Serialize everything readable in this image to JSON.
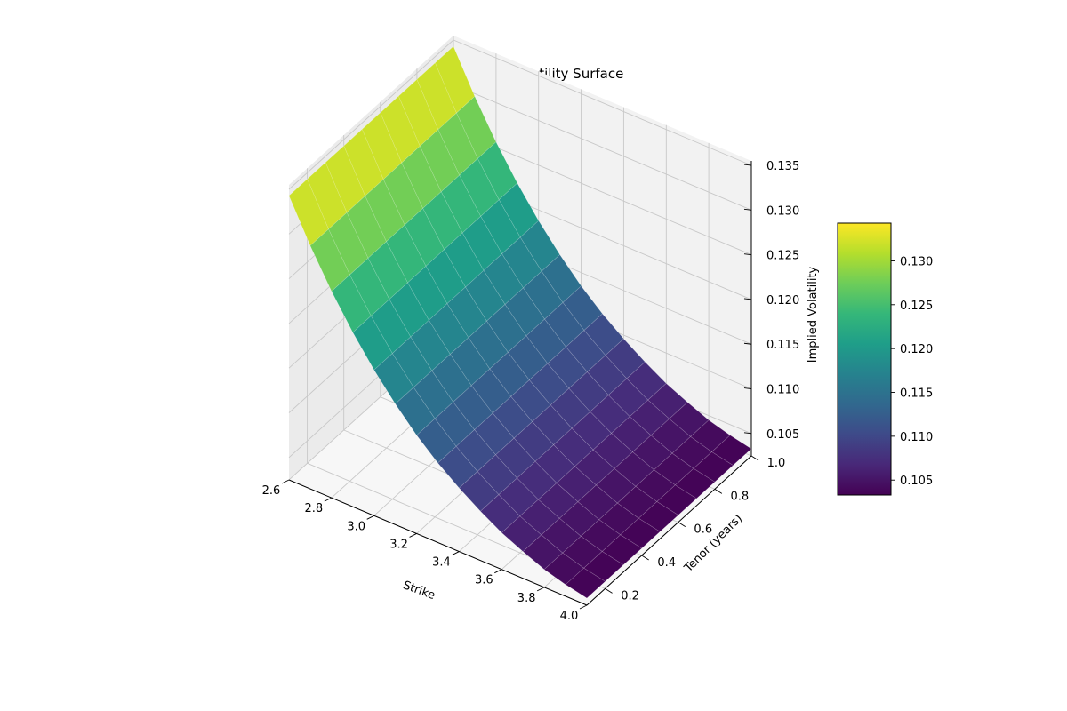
{
  "chart_data": {
    "type": "surface3d",
    "title": "SABR Implied Volatility Surface",
    "xlabel": "Strike",
    "ylabel": "Tenor (years)",
    "zlabel": "Implied Volatility",
    "xlim": [
      2.6,
      4.0
    ],
    "ylim": [
      0.1,
      1.0
    ],
    "zlim": [
      0.1025,
      0.1355
    ],
    "x_ticks": [
      "2.6",
      "2.8",
      "3.0",
      "3.2",
      "3.4",
      "3.6",
      "3.8",
      "4.0"
    ],
    "y_ticks": [
      "0.2",
      "0.4",
      "0.6",
      "0.8",
      "1.0"
    ],
    "z_ticks": [
      "0.105",
      "0.110",
      "0.115",
      "0.120",
      "0.125",
      "0.130",
      "0.135"
    ],
    "colorbar": {
      "colormap": "viridis",
      "range": [
        0.1033,
        0.1343
      ],
      "ticks": [
        "0.105",
        "0.110",
        "0.115",
        "0.120",
        "0.125",
        "0.130"
      ]
    },
    "grid": true,
    "surface_x": [
      2.6,
      2.7,
      2.8,
      2.9,
      3.0,
      3.1,
      3.2,
      3.3,
      3.4,
      3.5,
      3.6,
      3.7,
      3.8,
      3.9,
      4.0
    ],
    "surface_y": [
      0.1,
      0.2,
      0.3,
      0.4,
      0.5,
      0.6,
      0.7,
      0.8,
      0.9,
      1.0
    ],
    "surface_z": [
      [
        0.1343,
        0.1343,
        0.1343,
        0.1343,
        0.1343,
        0.1343,
        0.1343,
        0.1343,
        0.1343,
        0.1343
      ],
      [
        0.1297,
        0.1297,
        0.1297,
        0.1297,
        0.1297,
        0.1297,
        0.1297,
        0.1297,
        0.1297,
        0.1297
      ],
      [
        0.1256,
        0.1256,
        0.1256,
        0.1256,
        0.1256,
        0.1256,
        0.1256,
        0.1256,
        0.1256,
        0.1256
      ],
      [
        0.122,
        0.122,
        0.122,
        0.122,
        0.122,
        0.122,
        0.122,
        0.122,
        0.122,
        0.122
      ],
      [
        0.1188,
        0.1188,
        0.1188,
        0.1188,
        0.1188,
        0.1188,
        0.1188,
        0.1188,
        0.1188,
        0.1188
      ],
      [
        0.116,
        0.116,
        0.116,
        0.116,
        0.116,
        0.116,
        0.116,
        0.116,
        0.116,
        0.116
      ],
      [
        0.1135,
        0.1135,
        0.1135,
        0.1135,
        0.1135,
        0.1135,
        0.1135,
        0.1135,
        0.1135,
        0.1135
      ],
      [
        0.1114,
        0.1114,
        0.1114,
        0.1114,
        0.1114,
        0.1114,
        0.1114,
        0.1114,
        0.1114,
        0.1114
      ],
      [
        0.1096,
        0.1096,
        0.1096,
        0.1096,
        0.1096,
        0.1096,
        0.1096,
        0.1096,
        0.1096,
        0.1096
      ],
      [
        0.108,
        0.108,
        0.108,
        0.108,
        0.108,
        0.108,
        0.108,
        0.108,
        0.108,
        0.108
      ],
      [
        0.1066,
        0.1066,
        0.1066,
        0.1066,
        0.1066,
        0.1066,
        0.1066,
        0.1066,
        0.1066,
        0.1066
      ],
      [
        0.1055,
        0.1055,
        0.1055,
        0.1055,
        0.1055,
        0.1055,
        0.1055,
        0.1055,
        0.1055,
        0.1055
      ],
      [
        0.1045,
        0.1045,
        0.1045,
        0.1045,
        0.1045,
        0.1045,
        0.1045,
        0.1045,
        0.1045,
        0.1045
      ],
      [
        0.1038,
        0.1038,
        0.1038,
        0.1038,
        0.1038,
        0.1038,
        0.1038,
        0.1038,
        0.1038,
        0.1038
      ],
      [
        0.1033,
        0.1033,
        0.1033,
        0.1033,
        0.1033,
        0.1033,
        0.1033,
        0.1033,
        0.1033,
        0.1033
      ]
    ]
  }
}
